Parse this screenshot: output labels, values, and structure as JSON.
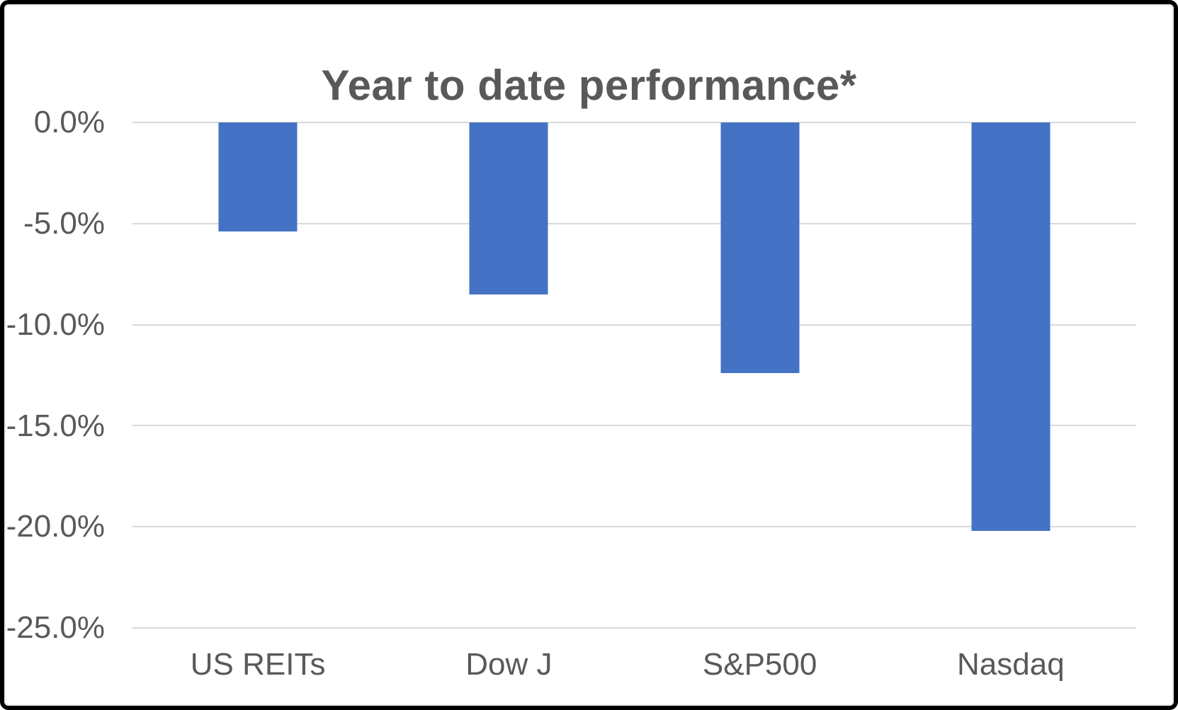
{
  "frame": {
    "background_color": "#ffffff",
    "border_color": "#000000",
    "inner_border_color": "#e7e7e7"
  },
  "chart_data": {
    "type": "bar",
    "title": "Year to date performance*",
    "categories": [
      "US REITs",
      "Dow J",
      "S&P500",
      "Nasdaq"
    ],
    "values": [
      -5.4,
      -8.5,
      -12.4,
      -20.2
    ],
    "unit": "%",
    "xlabel": "",
    "ylabel": "",
    "ylim": [
      -25,
      0
    ],
    "ytick_values": [
      0,
      -5,
      -10,
      -15,
      -20,
      -25
    ],
    "ytick_labels": [
      "0.0%",
      "-5.0%",
      "-10.0%",
      "-15.0%",
      "-20.0%",
      "-25.0%"
    ],
    "grid": true,
    "legend_position": "none",
    "bar_color": "#4472c4",
    "gridline_color": "#d9d9d9",
    "text_color": "#595959"
  }
}
